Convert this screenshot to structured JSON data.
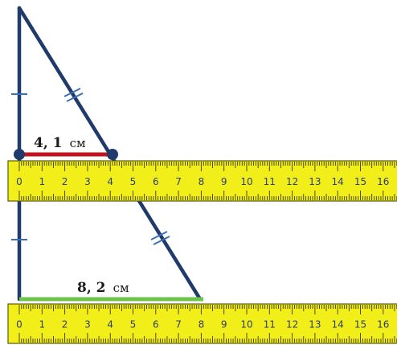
{
  "colors": {
    "line": "#1f3a6b",
    "short_segment": "#c0141e",
    "long_segment": "#6ec44a",
    "ruler_fill": "#f2ee1a",
    "ruler_edge": "#5a5a10",
    "tick_text": "#2a3f6b"
  },
  "rulers": [
    {
      "tick_labels": [
        "0",
        "1",
        "2",
        "3",
        "4",
        "5",
        "6",
        "7",
        "8",
        "9",
        "10",
        "11",
        "12",
        "13",
        "14",
        "15",
        "16"
      ]
    },
    {
      "tick_labels": [
        "0",
        "1",
        "2",
        "3",
        "4",
        "5",
        "6",
        "7",
        "8",
        "9",
        "10",
        "11",
        "12",
        "13",
        "14",
        "15",
        "16"
      ]
    }
  ],
  "measurements": {
    "short": {
      "value": "4, 1",
      "unit": "см"
    },
    "long": {
      "value": "8, 2",
      "unit": "см"
    }
  }
}
